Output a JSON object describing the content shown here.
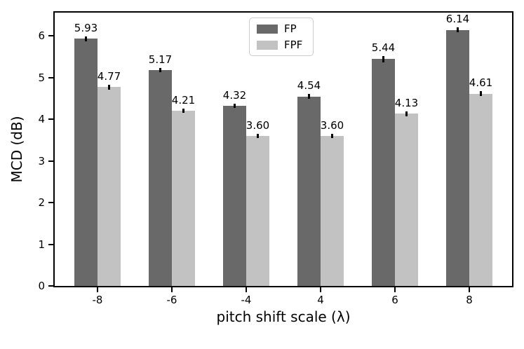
{
  "figure": {
    "background": "#ffffff",
    "axis_color": "#000000"
  },
  "chart_data": {
    "type": "bar",
    "title": "",
    "xlabel": "pitch shift scale (λ)",
    "ylabel": "MCD (dB)",
    "categories": [
      "-8",
      "-6",
      "-4",
      "4",
      "6",
      "8"
    ],
    "series": [
      {
        "name": "FP",
        "color": "#696969",
        "values": [
          5.93,
          5.17,
          4.32,
          4.54,
          5.44,
          6.14
        ],
        "errors": [
          0.06,
          0.05,
          0.05,
          0.06,
          0.07,
          0.06
        ],
        "value_labels": [
          "5.93",
          "5.17",
          "4.32",
          "4.54",
          "5.44",
          "6.14"
        ]
      },
      {
        "name": "FPF",
        "color": "#c2c2c2",
        "values": [
          4.77,
          4.21,
          3.6,
          3.6,
          4.13,
          4.61
        ],
        "errors": [
          0.06,
          0.05,
          0.05,
          0.05,
          0.06,
          0.06
        ],
        "value_labels": [
          "4.77",
          "4.21",
          "3.60",
          "3.60",
          "4.13",
          "4.61"
        ]
      }
    ],
    "ylim": [
      0,
      6.59
    ],
    "yticks": [
      0,
      1,
      2,
      3,
      4,
      5,
      6
    ],
    "grid": false,
    "legend_position": "upper center",
    "error_bar_color": "#000000"
  }
}
